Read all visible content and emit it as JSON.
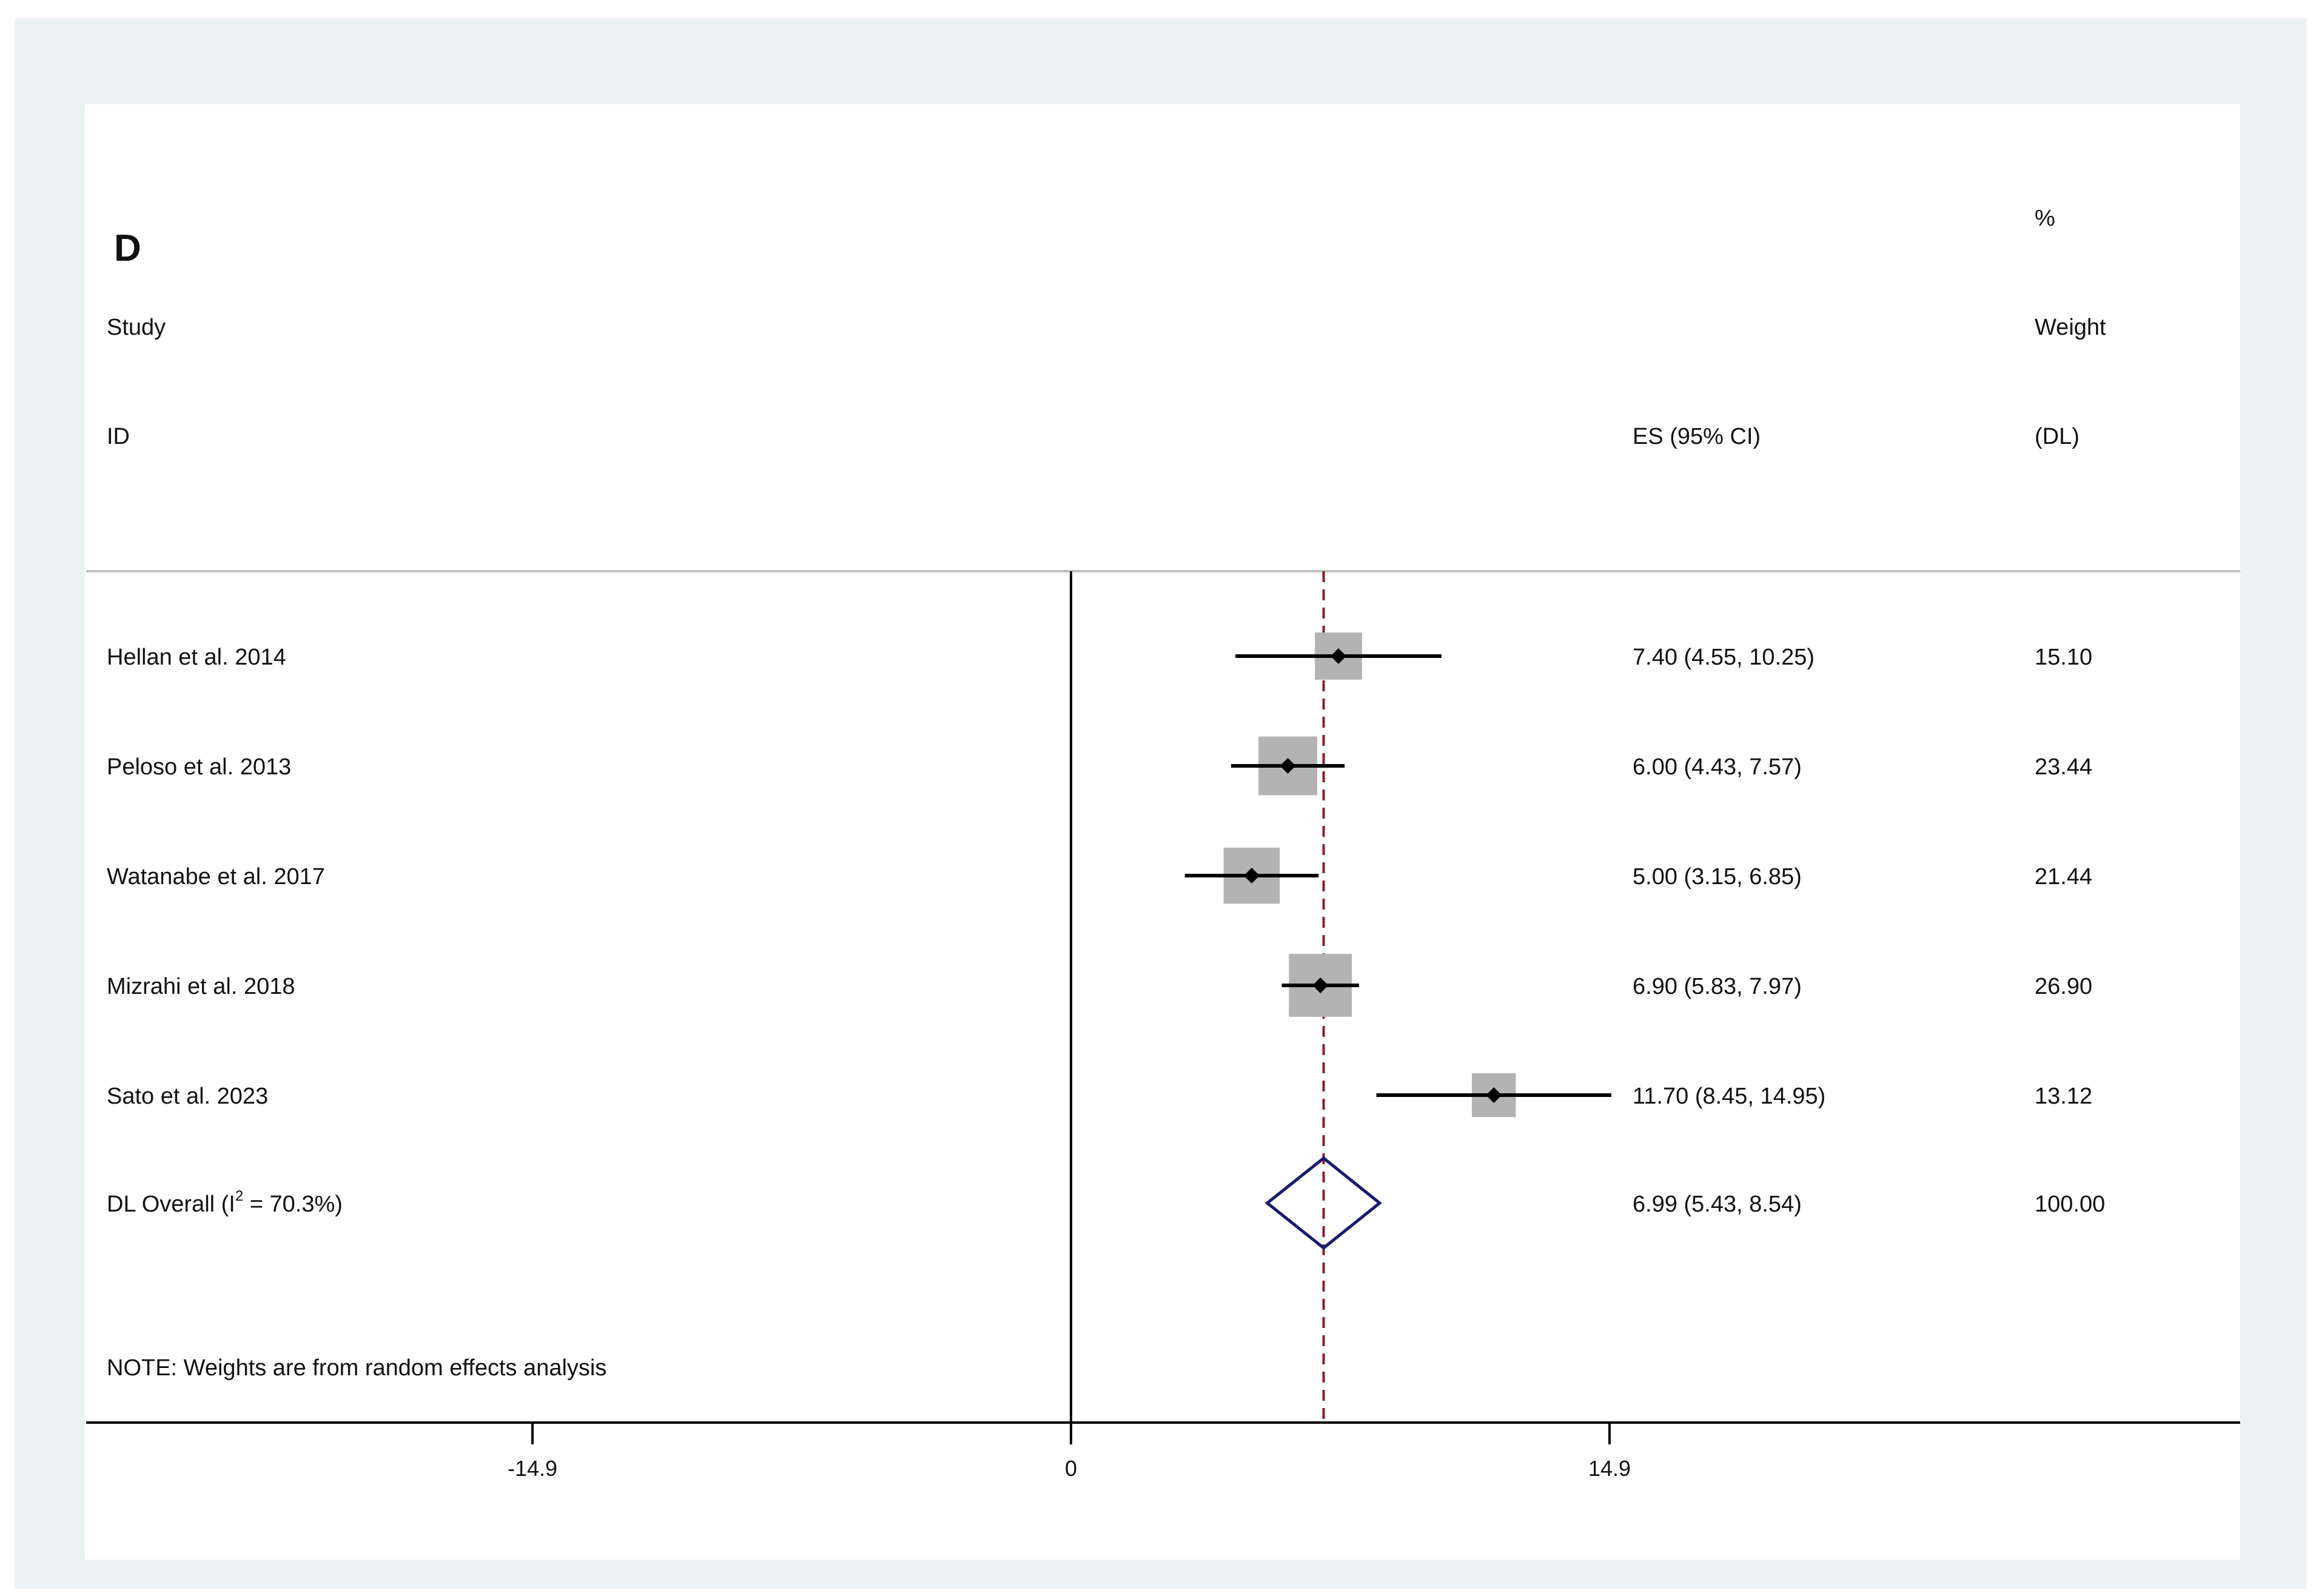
{
  "panel_label": "D",
  "headers": {
    "study_line1": "Study",
    "study_line2": "ID",
    "es": "ES (95% CI)",
    "weight_line1": "%",
    "weight_line2": "Weight",
    "weight_line3": "(DL)"
  },
  "note": "NOTE: Weights are from random effects analysis",
  "colors": {
    "frame_background": "#eaf2f3",
    "plot_background": "#ffffff",
    "point": "#000000",
    "weight_box": "#b3b3b3",
    "overall_diamond": "#1a1a6e",
    "pooled_line": "#8b1a2b",
    "header_rule": "#c0c0c0"
  },
  "chart_data": {
    "type": "forest",
    "x_axis": {
      "ticks": [
        -14.9,
        0,
        14.9
      ],
      "tick_labels": [
        "-14.9",
        "0",
        "14.9"
      ],
      "range": [
        -27.3,
        32.6
      ],
      "null_line": 0
    },
    "studies": [
      {
        "name": "Hellan et al. 2014",
        "es": 7.4,
        "lower": 4.55,
        "upper": 10.25,
        "es_label": "7.40 (4.55, 10.25)",
        "weight": 15.1,
        "weight_label": "15.10"
      },
      {
        "name": "Peloso et al. 2013",
        "es": 6.0,
        "lower": 4.43,
        "upper": 7.57,
        "es_label": "6.00 (4.43, 7.57)",
        "weight": 23.44,
        "weight_label": "23.44"
      },
      {
        "name": "Watanabe et al. 2017",
        "es": 5.0,
        "lower": 3.15,
        "upper": 6.85,
        "es_label": "5.00 (3.15, 6.85)",
        "weight": 21.44,
        "weight_label": "21.44"
      },
      {
        "name": "Mizrahi et al. 2018",
        "es": 6.9,
        "lower": 5.83,
        "upper": 7.97,
        "es_label": "6.90 (5.83, 7.97)",
        "weight": 26.9,
        "weight_label": "26.90"
      },
      {
        "name": "Sato et al. 2023",
        "es": 11.7,
        "lower": 8.45,
        "upper": 14.95,
        "es_label": "11.70 (8.45, 14.95)",
        "weight": 13.12,
        "weight_label": "13.12"
      }
    ],
    "overall": {
      "label_main": "DL Overall  (I",
      "label_sup": "2",
      "label_tail": " = 70.3%)",
      "es": 6.99,
      "lower": 5.43,
      "upper": 8.54,
      "es_label": "6.99 (5.43, 8.54)",
      "weight_label": "100.00"
    }
  }
}
